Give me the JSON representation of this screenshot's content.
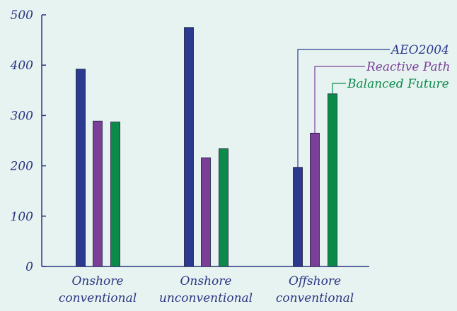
{
  "chart_data": {
    "type": "bar",
    "categories": [
      [
        "Onshore",
        "conventional"
      ],
      [
        "Onshore",
        "unconventional"
      ],
      [
        "Offshore",
        "conventional"
      ]
    ],
    "series": [
      {
        "name": "AEO2004",
        "color": "#2b3a8f",
        "values": [
          392,
          475,
          197
        ]
      },
      {
        "name": "Reactive Path",
        "color": "#7b3f98",
        "values": [
          289,
          216,
          265
        ]
      },
      {
        "name": "Balanced Future",
        "color": "#0b8a4a",
        "values": [
          287,
          234,
          343
        ]
      }
    ],
    "y_ticks": [
      "0",
      "100",
      "200",
      "300",
      "400",
      "500"
    ],
    "ylim": [
      0,
      500
    ],
    "title": "",
    "xlabel": "",
    "ylabel": "",
    "grid": false,
    "legend_placement": "top-right, callout lines to offshore bars",
    "axis_color": "#2c3580"
  }
}
